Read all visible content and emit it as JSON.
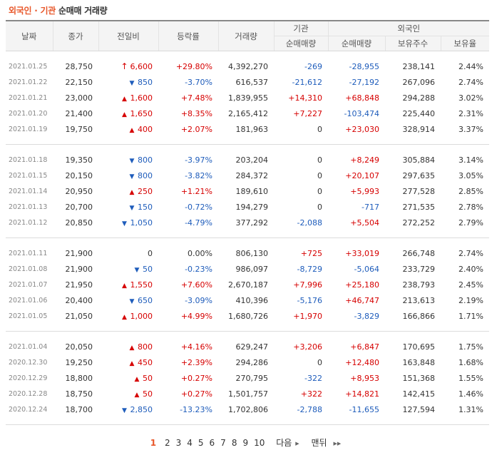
{
  "title": {
    "part1": "외국인",
    "separator": "·",
    "part2": "기관",
    "part3": "순매매 거래량"
  },
  "headers": {
    "date": "날짜",
    "close": "종가",
    "change": "전일비",
    "rate": "등락률",
    "volume": "거래량",
    "inst_group": "기관",
    "foreign_group": "외국인",
    "inst_net": "순매매량",
    "foreign_net": "순매매량",
    "foreign_hold": "보유주수",
    "foreign_ratio": "보유율"
  },
  "colors": {
    "up": "#d60000",
    "down": "#1e5cbb",
    "accent": "#e8572a"
  },
  "groups": [
    [
      {
        "date": "2021.01.25",
        "close": "28,750",
        "dir": "upper",
        "change": "6,600",
        "rate": "+29.80%",
        "rate_dir": "up",
        "volume": "4,392,270",
        "inst": "-269",
        "inst_dir": "down",
        "foreign": "-28,955",
        "foreign_dir": "down",
        "hold": "238,141",
        "ratio": "2.44%"
      },
      {
        "date": "2021.01.22",
        "close": "22,150",
        "dir": "down",
        "change": "850",
        "rate": "-3.70%",
        "rate_dir": "down",
        "volume": "616,537",
        "inst": "-21,612",
        "inst_dir": "down",
        "foreign": "-27,192",
        "foreign_dir": "down",
        "hold": "267,096",
        "ratio": "2.74%"
      },
      {
        "date": "2021.01.21",
        "close": "23,000",
        "dir": "up",
        "change": "1,600",
        "rate": "+7.48%",
        "rate_dir": "up",
        "volume": "1,839,955",
        "inst": "+14,310",
        "inst_dir": "up",
        "foreign": "+68,848",
        "foreign_dir": "up",
        "hold": "294,288",
        "ratio": "3.02%"
      },
      {
        "date": "2021.01.20",
        "close": "21,400",
        "dir": "up",
        "change": "1,650",
        "rate": "+8.35%",
        "rate_dir": "up",
        "volume": "2,165,412",
        "inst": "+7,227",
        "inst_dir": "up",
        "foreign": "-103,474",
        "foreign_dir": "down",
        "hold": "225,440",
        "ratio": "2.31%"
      },
      {
        "date": "2021.01.19",
        "close": "19,750",
        "dir": "up",
        "change": "400",
        "rate": "+2.07%",
        "rate_dir": "up",
        "volume": "181,963",
        "inst": "0",
        "inst_dir": "none",
        "foreign": "+23,030",
        "foreign_dir": "up",
        "hold": "328,914",
        "ratio": "3.37%"
      }
    ],
    [
      {
        "date": "2021.01.18",
        "close": "19,350",
        "dir": "down",
        "change": "800",
        "rate": "-3.97%",
        "rate_dir": "down",
        "volume": "203,204",
        "inst": "0",
        "inst_dir": "none",
        "foreign": "+8,249",
        "foreign_dir": "up",
        "hold": "305,884",
        "ratio": "3.14%"
      },
      {
        "date": "2021.01.15",
        "close": "20,150",
        "dir": "down",
        "change": "800",
        "rate": "-3.82%",
        "rate_dir": "down",
        "volume": "284,372",
        "inst": "0",
        "inst_dir": "none",
        "foreign": "+20,107",
        "foreign_dir": "up",
        "hold": "297,635",
        "ratio": "3.05%"
      },
      {
        "date": "2021.01.14",
        "close": "20,950",
        "dir": "up",
        "change": "250",
        "rate": "+1.21%",
        "rate_dir": "up",
        "volume": "189,610",
        "inst": "0",
        "inst_dir": "none",
        "foreign": "+5,993",
        "foreign_dir": "up",
        "hold": "277,528",
        "ratio": "2.85%"
      },
      {
        "date": "2021.01.13",
        "close": "20,700",
        "dir": "down",
        "change": "150",
        "rate": "-0.72%",
        "rate_dir": "down",
        "volume": "194,279",
        "inst": "0",
        "inst_dir": "none",
        "foreign": "-717",
        "foreign_dir": "down",
        "hold": "271,535",
        "ratio": "2.78%"
      },
      {
        "date": "2021.01.12",
        "close": "20,850",
        "dir": "down",
        "change": "1,050",
        "rate": "-4.79%",
        "rate_dir": "down",
        "volume": "377,292",
        "inst": "-2,088",
        "inst_dir": "down",
        "foreign": "+5,504",
        "foreign_dir": "up",
        "hold": "272,252",
        "ratio": "2.79%"
      }
    ],
    [
      {
        "date": "2021.01.11",
        "close": "21,900",
        "dir": "none",
        "change": "0",
        "rate": "0.00%",
        "rate_dir": "none",
        "volume": "806,130",
        "inst": "+725",
        "inst_dir": "up",
        "foreign": "+33,019",
        "foreign_dir": "up",
        "hold": "266,748",
        "ratio": "2.74%"
      },
      {
        "date": "2021.01.08",
        "close": "21,900",
        "dir": "down",
        "change": "50",
        "rate": "-0.23%",
        "rate_dir": "down",
        "volume": "986,097",
        "inst": "-8,729",
        "inst_dir": "down",
        "foreign": "-5,064",
        "foreign_dir": "down",
        "hold": "233,729",
        "ratio": "2.40%"
      },
      {
        "date": "2021.01.07",
        "close": "21,950",
        "dir": "up",
        "change": "1,550",
        "rate": "+7.60%",
        "rate_dir": "up",
        "volume": "2,670,187",
        "inst": "+7,996",
        "inst_dir": "up",
        "foreign": "+25,180",
        "foreign_dir": "up",
        "hold": "238,793",
        "ratio": "2.45%"
      },
      {
        "date": "2021.01.06",
        "close": "20,400",
        "dir": "down",
        "change": "650",
        "rate": "-3.09%",
        "rate_dir": "down",
        "volume": "410,396",
        "inst": "-5,176",
        "inst_dir": "down",
        "foreign": "+46,747",
        "foreign_dir": "up",
        "hold": "213,613",
        "ratio": "2.19%"
      },
      {
        "date": "2021.01.05",
        "close": "21,050",
        "dir": "up",
        "change": "1,000",
        "rate": "+4.99%",
        "rate_dir": "up",
        "volume": "1,680,726",
        "inst": "+1,970",
        "inst_dir": "up",
        "foreign": "-3,829",
        "foreign_dir": "down",
        "hold": "166,866",
        "ratio": "1.71%"
      }
    ],
    [
      {
        "date": "2021.01.04",
        "close": "20,050",
        "dir": "up",
        "change": "800",
        "rate": "+4.16%",
        "rate_dir": "up",
        "volume": "629,247",
        "inst": "+3,206",
        "inst_dir": "up",
        "foreign": "+6,847",
        "foreign_dir": "up",
        "hold": "170,695",
        "ratio": "1.75%"
      },
      {
        "date": "2020.12.30",
        "close": "19,250",
        "dir": "up",
        "change": "450",
        "rate": "+2.39%",
        "rate_dir": "up",
        "volume": "294,286",
        "inst": "0",
        "inst_dir": "none",
        "foreign": "+12,480",
        "foreign_dir": "up",
        "hold": "163,848",
        "ratio": "1.68%"
      },
      {
        "date": "2020.12.29",
        "close": "18,800",
        "dir": "up",
        "change": "50",
        "rate": "+0.27%",
        "rate_dir": "up",
        "volume": "270,795",
        "inst": "-322",
        "inst_dir": "down",
        "foreign": "+8,953",
        "foreign_dir": "up",
        "hold": "151,368",
        "ratio": "1.55%"
      },
      {
        "date": "2020.12.28",
        "close": "18,750",
        "dir": "up",
        "change": "50",
        "rate": "+0.27%",
        "rate_dir": "up",
        "volume": "1,501,757",
        "inst": "+322",
        "inst_dir": "up",
        "foreign": "+14,821",
        "foreign_dir": "up",
        "hold": "142,415",
        "ratio": "1.46%"
      },
      {
        "date": "2020.12.24",
        "close": "18,700",
        "dir": "down",
        "change": "2,850",
        "rate": "-13.23%",
        "rate_dir": "down",
        "volume": "1,702,806",
        "inst": "-2,788",
        "inst_dir": "down",
        "foreign": "-11,655",
        "foreign_dir": "down",
        "hold": "127,594",
        "ratio": "1.31%"
      }
    ]
  ],
  "arrows": {
    "upper": "↑",
    "up": "▲",
    "down": "▼",
    "none": ""
  },
  "pager": {
    "current": "1",
    "pages": [
      "2",
      "3",
      "4",
      "5",
      "6",
      "7",
      "8",
      "9",
      "10"
    ],
    "next_label": "다음",
    "last_label": "맨뒤",
    "next_icon": "▶",
    "last_icon": "▶▶"
  }
}
